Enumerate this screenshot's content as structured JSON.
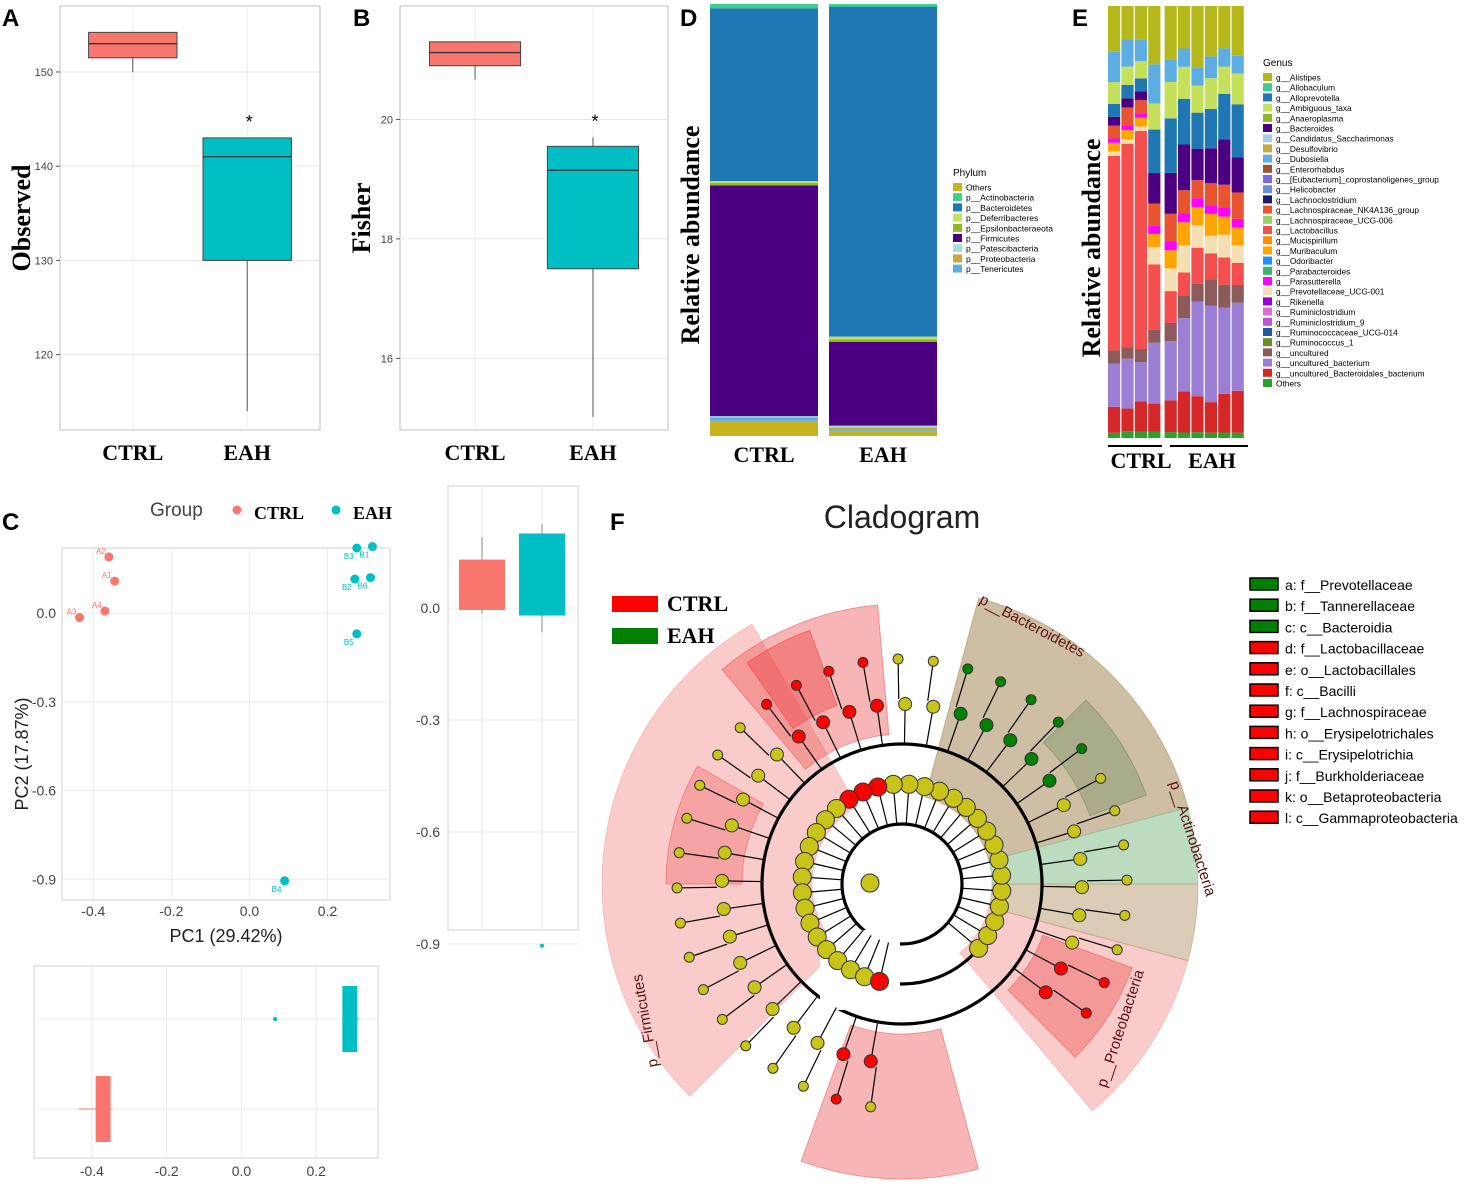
{
  "panel_labels": [
    "A",
    "B",
    "C",
    "D",
    "E",
    "F"
  ],
  "colors": {
    "ctrl": "#f8766d",
    "eah": "#00bfc4",
    "lefse_ctrl": "#ff0000",
    "lefse_eah": "#008000",
    "node_default": "#c8c41a"
  },
  "chart_data": [
    {
      "id": "A",
      "type": "box",
      "ylabel": "Observed",
      "categories": [
        "CTRL",
        "EAH"
      ],
      "ylim": [
        112,
        157
      ],
      "yticks": [
        120,
        130,
        140,
        150
      ],
      "boxes": [
        {
          "group": "CTRL",
          "min": 150,
          "q1": 151.5,
          "median": 153,
          "q3": 154.2,
          "max": 154.2
        },
        {
          "group": "EAH",
          "min": 114,
          "q1": 130,
          "median": 141,
          "q3": 143,
          "max": 143
        }
      ],
      "annotation": "*"
    },
    {
      "id": "B",
      "type": "box",
      "ylabel": "Fisher",
      "categories": [
        "CTRL",
        "EAH"
      ],
      "ylim": [
        14.8,
        21.9
      ],
      "yticks": [
        16,
        18,
        20
      ],
      "boxes": [
        {
          "group": "CTRL",
          "min": 20.67,
          "q1": 20.9,
          "median": 21.12,
          "q3": 21.3,
          "max": 21.3
        },
        {
          "group": "EAH",
          "min": 15.02,
          "q1": 17.5,
          "median": 19.15,
          "q3": 19.55,
          "max": 19.7
        }
      ],
      "annotation": "*"
    },
    {
      "id": "C",
      "type": "scatter",
      "xlabel": "PC1 (29.42%)",
      "ylabel": "PC2 (17.87%)",
      "xlim": [
        -0.48,
        0.36
      ],
      "ylim": [
        -0.97,
        0.22
      ],
      "xticks": [
        -0.4,
        -0.2,
        0.0,
        0.2
      ],
      "yticks": [
        0.0,
        -0.3,
        -0.6,
        -0.9
      ],
      "legend_title": "Group",
      "legend": [
        "CTRL",
        "EAH"
      ],
      "points": [
        {
          "label": "A1",
          "x": -0.345,
          "y": 0.108,
          "group": "CTRL"
        },
        {
          "label": "A2",
          "x": -0.36,
          "y": 0.19,
          "group": "CTRL"
        },
        {
          "label": "A3",
          "x": -0.435,
          "y": -0.015,
          "group": "CTRL"
        },
        {
          "label": "A4",
          "x": -0.37,
          "y": 0.007,
          "group": "CTRL"
        },
        {
          "label": "B1",
          "x": 0.315,
          "y": 0.225,
          "group": "EAH"
        },
        {
          "label": "B2",
          "x": 0.27,
          "y": 0.115,
          "group": "EAH"
        },
        {
          "label": "B3",
          "x": 0.275,
          "y": 0.22,
          "group": "EAH"
        },
        {
          "label": "B4",
          "x": 0.09,
          "y": -0.905,
          "group": "EAH"
        },
        {
          "label": "B5",
          "x": 0.275,
          "y": -0.07,
          "group": "EAH"
        },
        {
          "label": "B6",
          "x": 0.31,
          "y": 0.12,
          "group": "EAH"
        }
      ],
      "pc2_boxes": {
        "ylim": [
          -0.97,
          0.22
        ],
        "yticks": [
          0.0,
          -0.3,
          -0.6,
          -0.9
        ],
        "boxes": [
          {
            "group": "CTRL",
            "min": -0.015,
            "q1": -0.005,
            "median": 0.0,
            "q3": 0.13,
            "max": 0.19
          },
          {
            "group": "EAH",
            "min": -0.065,
            "q1": -0.02,
            "median": 0.17,
            "q3": 0.2,
            "max": 0.225,
            "outlier": -0.905
          }
        ]
      },
      "pc1_boxes": {
        "xlim": [
          -0.48,
          0.36
        ],
        "xticks": [
          -0.4,
          -0.2,
          0.0,
          0.2
        ],
        "boxes": [
          {
            "group": "CTRL",
            "min": -0.435,
            "q1": -0.39,
            "median": -0.365,
            "q3": -0.35,
            "max": -0.345
          },
          {
            "group": "EAH",
            "min": 0.27,
            "q1": 0.27,
            "median": 0.275,
            "q3": 0.31,
            "max": 0.315,
            "outlier": 0.09
          }
        ]
      }
    },
    {
      "id": "D",
      "type": "stacked_bar",
      "ylabel": "Relative abundance",
      "categories": [
        "CTRL",
        "EAH"
      ],
      "legend_title": "Phylum",
      "legend": [
        "Others",
        "p__Actinobacteria",
        "p__Bacteroidetes",
        "p__Deferribacteres",
        "p__Epsilonbacteraeota",
        "p__Firmicutes",
        "p__Patescibacteria",
        "p__Proteobacteria",
        "p__Tenericutes"
      ],
      "legend_colors": [
        "#c8b420",
        "#3ecf8e",
        "#1f77b4",
        "#c5e05a",
        "#8bbb1c",
        "#4b0082",
        "#a6dde0",
        "#c8a838",
        "#5dade2"
      ],
      "series": [
        {
          "name": "Others",
          "values": [
            0.035,
            0.012
          ]
        },
        {
          "name": "p__Tenericutes",
          "values": [
            0.008,
            0.004
          ]
        },
        {
          "name": "p__Proteobacteria",
          "values": [
            0.0,
            0.004
          ]
        },
        {
          "name": "p__Patescibacteria",
          "values": [
            0.003,
            0.004
          ]
        },
        {
          "name": "p__Firmicutes",
          "values": [
            0.534,
            0.194
          ]
        },
        {
          "name": "p__Epsilonbacteraeota",
          "values": [
            0.006,
            0.006
          ]
        },
        {
          "name": "p__Deferribacteres",
          "values": [
            0.004,
            0.006
          ]
        },
        {
          "name": "p__Bacteroidetes",
          "values": [
            0.4,
            0.764
          ]
        },
        {
          "name": "p__Actinobacteria",
          "values": [
            0.01,
            0.006
          ]
        }
      ]
    },
    {
      "id": "E",
      "type": "stacked_bar",
      "ylabel": "Relative abundance",
      "group_labels": [
        "CTRL",
        "EAH"
      ],
      "samples": 10,
      "legend_title": "Genus",
      "legend": [
        "g__Alistipes",
        "g__Allobaculum",
        "g__Alloprevotella",
        "g__Ambiguous_taxa",
        "g__Anaeroplasma",
        "g__Bacteroides",
        "g__Candidatus_Saccharimonas",
        "g__Desulfovibrio",
        "g__Dubosiella",
        "g__Enterorhabdus",
        "g__[Eubacterium]_coprostanoligenes_group",
        "g__Helicobacter",
        "g__Lachnoclostridium",
        "g__Lachnospiraceae_NK4A136_group",
        "g__Lachnospiraceae_UCG-006",
        "g__Lactobacillus",
        "g__Mucispirillum",
        "g__Muribaculum",
        "g__Odoribacter",
        "g__Parabacteroides",
        "g__Parasutterella",
        "g__Prevotellaceae_UCG-001",
        "g__Rikenella",
        "g__Ruminiclostridium",
        "g__Ruminiclostridium_9",
        "g__Ruminococcaceae_UCG-014",
        "g__Ruminococcus_1",
        "g__uncultured",
        "g__uncultured_bacterium",
        "g__uncultured_Bacteroidales_bacterium",
        "Others"
      ],
      "legend_colors": [
        "#b5b81a",
        "#3ecf8e",
        "#1f77b4",
        "#c5e05a",
        "#8bbb1c",
        "#4b0082",
        "#a6cfe6",
        "#c8a838",
        "#5dade2",
        "#a0522d",
        "#7b68ee",
        "#6a8fd0",
        "#1a1a6e",
        "#e8542f",
        "#9ccc65",
        "#f44e4e",
        "#ff8c00",
        "#ffa500",
        "#1e90ff",
        "#3cb371",
        "#ff00ff",
        "#f5deb3",
        "#9400d3",
        "#da70d6",
        "#ba55d3",
        "#1e5aa0",
        "#6b8e23",
        "#8b5a5a",
        "#9b7fd4",
        "#d62728",
        "#2ca02c"
      ],
      "series": [
        {
          "name": "Others",
          "values": [
            0.012,
            0.015,
            0.014,
            0.014,
            0.013,
            0.012,
            0.013,
            0.012,
            0.012,
            0.012
          ]
        },
        {
          "name": "g__uncultured_Bacteroidales_bacterium",
          "values": [
            0.06,
            0.05,
            0.07,
            0.065,
            0.07,
            0.09,
            0.08,
            0.07,
            0.085,
            0.095
          ]
        },
        {
          "name": "g__uncultured_bacterium",
          "values": [
            0.1,
            0.11,
            0.09,
            0.14,
            0.13,
            0.16,
            0.21,
            0.22,
            0.19,
            0.2
          ]
        },
        {
          "name": "g__uncultured",
          "values": [
            0.03,
            0.025,
            0.03,
            0.03,
            0.04,
            0.05,
            0.04,
            0.06,
            0.05,
            0.04
          ]
        },
        {
          "name": "g__Lactobacillus",
          "values": [
            0.45,
            0.45,
            0.5,
            0.15,
            0.07,
            0.05,
            0.08,
            0.06,
            0.06,
            0.05
          ]
        },
        {
          "name": "g__Prevotellaceae_UCG-001",
          "values": [
            0.01,
            0.01,
            0.01,
            0.04,
            0.05,
            0.06,
            0.05,
            0.04,
            0.05,
            0.04
          ]
        },
        {
          "name": "g__Muribaculum",
          "values": [
            0.02,
            0.02,
            0.02,
            0.03,
            0.04,
            0.05,
            0.04,
            0.05,
            0.04,
            0.04
          ]
        },
        {
          "name": "g__Parasutterella",
          "values": [
            0.01,
            0.01,
            0.01,
            0.02,
            0.02,
            0.02,
            0.02,
            0.02,
            0.02,
            0.02
          ]
        },
        {
          "name": "g__Lachnospiraceae_NK4A136_group",
          "values": [
            0.03,
            0.04,
            0.03,
            0.05,
            0.06,
            0.05,
            0.04,
            0.05,
            0.05,
            0.06
          ]
        },
        {
          "name": "g__Bacteroides",
          "values": [
            0.02,
            0.02,
            0.02,
            0.07,
            0.09,
            0.1,
            0.07,
            0.08,
            0.1,
            0.08
          ]
        },
        {
          "name": "g__Alloprevotella",
          "values": [
            0.03,
            0.03,
            0.03,
            0.1,
            0.12,
            0.1,
            0.08,
            0.09,
            0.1,
            0.12
          ]
        },
        {
          "name": "g__Ambiguous_taxa",
          "values": [
            0.05,
            0.04,
            0.04,
            0.06,
            0.08,
            0.07,
            0.06,
            0.07,
            0.06,
            0.07
          ]
        },
        {
          "name": "g__Dubosiella",
          "values": [
            0.07,
            0.06,
            0.05,
            0.09,
            0.05,
            0.04,
            0.04,
            0.05,
            0.04,
            0.04
          ]
        },
        {
          "name": "g__Alistipes",
          "values": [
            0.106,
            0.074,
            0.076,
            0.134,
            0.117,
            0.093,
            0.137,
            0.115,
            0.093,
            0.113
          ]
        }
      ]
    },
    {
      "id": "F",
      "type": "cladogram",
      "title": "Cladogram",
      "legend": [
        {
          "group": "CTRL",
          "color": "#ff0000"
        },
        {
          "group": "EAH",
          "color": "#008000"
        }
      ],
      "phyla": [
        "p__Bacteroidetes",
        "p__Actinobacteria",
        "p__Proteobacteria",
        "p__Firmicutes"
      ],
      "biomarkers": [
        {
          "key": "a",
          "text": "a: f__Prevotellaceae",
          "group": "EAH"
        },
        {
          "key": "b",
          "text": "b: f__Tannerellaceae",
          "group": "EAH"
        },
        {
          "key": "c",
          "text": "c: c__Bacteroidia",
          "group": "EAH"
        },
        {
          "key": "d",
          "text": "d: f__Lactobacillaceae",
          "group": "CTRL"
        },
        {
          "key": "e",
          "text": "e: o__Lactobacillales",
          "group": "CTRL"
        },
        {
          "key": "f",
          "text": "f: c__Bacilli",
          "group": "CTRL"
        },
        {
          "key": "g",
          "text": "g: f__Lachnospiraceae",
          "group": "CTRL"
        },
        {
          "key": "h",
          "text": "h: o__Erysipelotrichales",
          "group": "CTRL"
        },
        {
          "key": "i",
          "text": "i: c__Erysipelotrichia",
          "group": "CTRL"
        },
        {
          "key": "j",
          "text": "j: f__Burkholderiaceae",
          "group": "CTRL"
        },
        {
          "key": "k",
          "text": "k: o__Betaproteobacteria",
          "group": "CTRL"
        },
        {
          "key": "l",
          "text": "l: c__Gammaproteobacteria",
          "group": "CTRL"
        }
      ]
    }
  ]
}
